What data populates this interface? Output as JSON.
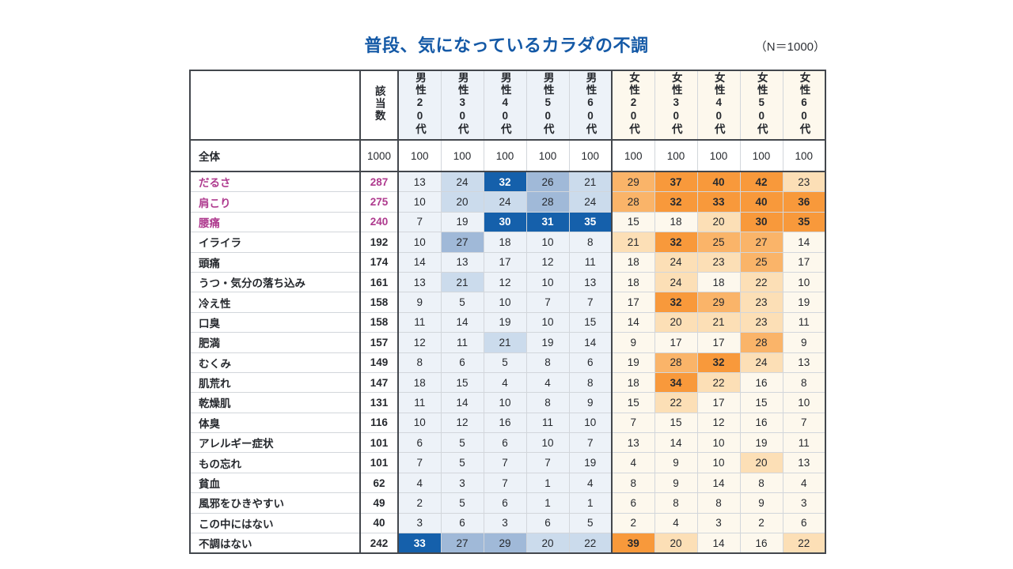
{
  "title": "普段、気になっているカラダの不調",
  "n_label": "（N＝1000）",
  "chart_data": {
    "type": "table",
    "columns": [
      "該当数",
      "男性20代",
      "男性30代",
      "男性40代",
      "男性50代",
      "男性60代",
      "女性20代",
      "女性30代",
      "女性40代",
      "女性50代",
      "女性60代"
    ],
    "total_row": {
      "label": "全体",
      "values": [
        1000,
        100,
        100,
        100,
        100,
        100,
        100,
        100,
        100,
        100,
        100
      ]
    },
    "rows": [
      {
        "label": "だるさ",
        "highlight_label": true,
        "values": [
          287,
          13,
          24,
          32,
          26,
          21,
          29,
          37,
          40,
          42,
          23
        ]
      },
      {
        "label": "肩こり",
        "highlight_label": true,
        "values": [
          275,
          10,
          20,
          24,
          28,
          24,
          28,
          32,
          33,
          40,
          36
        ]
      },
      {
        "label": "腰痛",
        "highlight_label": true,
        "values": [
          240,
          7,
          19,
          30,
          31,
          35,
          15,
          18,
          20,
          30,
          35
        ]
      },
      {
        "label": "イライラ",
        "highlight_label": false,
        "values": [
          192,
          10,
          27,
          18,
          10,
          8,
          21,
          32,
          25,
          27,
          14
        ]
      },
      {
        "label": "頭痛",
        "highlight_label": false,
        "values": [
          174,
          14,
          13,
          17,
          12,
          11,
          18,
          24,
          23,
          25,
          17
        ]
      },
      {
        "label": "うつ・気分の落ち込み",
        "highlight_label": false,
        "values": [
          161,
          13,
          21,
          12,
          10,
          13,
          18,
          24,
          18,
          22,
          10
        ]
      },
      {
        "label": "冷え性",
        "highlight_label": false,
        "values": [
          158,
          9,
          5,
          10,
          7,
          7,
          17,
          32,
          29,
          23,
          19
        ]
      },
      {
        "label": "口臭",
        "highlight_label": false,
        "values": [
          158,
          11,
          14,
          19,
          10,
          15,
          14,
          20,
          21,
          23,
          11
        ]
      },
      {
        "label": "肥満",
        "highlight_label": false,
        "values": [
          157,
          12,
          11,
          21,
          19,
          14,
          9,
          17,
          17,
          28,
          9
        ]
      },
      {
        "label": "むくみ",
        "highlight_label": false,
        "values": [
          149,
          8,
          6,
          5,
          8,
          6,
          19,
          28,
          32,
          24,
          13
        ]
      },
      {
        "label": "肌荒れ",
        "highlight_label": false,
        "values": [
          147,
          18,
          15,
          4,
          4,
          8,
          18,
          34,
          22,
          16,
          8
        ]
      },
      {
        "label": "乾燥肌",
        "highlight_label": false,
        "values": [
          131,
          11,
          14,
          10,
          8,
          9,
          15,
          22,
          17,
          15,
          10
        ]
      },
      {
        "label": "体臭",
        "highlight_label": false,
        "values": [
          116,
          10,
          12,
          16,
          11,
          10,
          7,
          15,
          12,
          16,
          7
        ]
      },
      {
        "label": "アレルギー症状",
        "highlight_label": false,
        "values": [
          101,
          6,
          5,
          6,
          10,
          7,
          13,
          14,
          10,
          19,
          11
        ]
      },
      {
        "label": "もの忘れ",
        "highlight_label": false,
        "values": [
          101,
          7,
          5,
          7,
          7,
          19,
          4,
          9,
          10,
          20,
          13
        ]
      },
      {
        "label": "貧血",
        "highlight_label": false,
        "values": [
          62,
          4,
          3,
          7,
          1,
          4,
          8,
          9,
          14,
          8,
          4
        ]
      },
      {
        "label": "風邪をひきやすい",
        "highlight_label": false,
        "values": [
          49,
          2,
          5,
          6,
          1,
          1,
          6,
          8,
          8,
          9,
          3
        ]
      },
      {
        "label": "この中にはない",
        "highlight_label": false,
        "values": [
          40,
          3,
          6,
          3,
          6,
          5,
          2,
          4,
          3,
          2,
          6
        ]
      },
      {
        "label": "不調はない",
        "highlight_label": false,
        "values": [
          242,
          33,
          27,
          29,
          20,
          22,
          39,
          20,
          14,
          16,
          22
        ]
      }
    ],
    "highlight_rule": {
      "light": 20,
      "medium": 25,
      "strong": 30
    },
    "male_columns": [
      1,
      2,
      3,
      4,
      5
    ],
    "female_columns": [
      6,
      7,
      8,
      9,
      10
    ]
  },
  "colors": {
    "title": "#1459a6",
    "accent_label": "#ae3a8e",
    "male_base": "#edf2f8",
    "male_light": "#cbdbec",
    "male_medium": "#a0b9d8",
    "male_strong": "#1560ab",
    "female_base": "#fdf8ed",
    "female_light": "#fcdfb6",
    "female_medium": "#fab469",
    "female_strong": "#f8993b"
  }
}
